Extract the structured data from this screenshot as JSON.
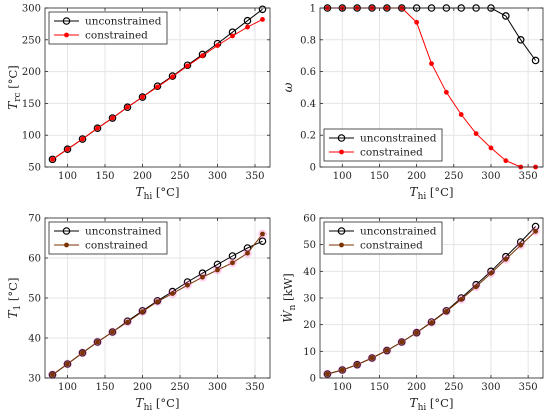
{
  "chart_data": [
    {
      "type": "line",
      "xlabel_main": "T",
      "xlabel_sub": "hi",
      "xlabel_unit": "[°C]",
      "ylabel_main": "T",
      "ylabel_sub": "rc",
      "ylabel_unit": "[°C]",
      "xlim": [
        70,
        370
      ],
      "ylim": [
        50,
        300
      ],
      "xticks": [
        100,
        150,
        200,
        250,
        300,
        350
      ],
      "yticks": [
        50,
        100,
        150,
        200,
        250,
        300
      ],
      "xtick_labels": [
        "100",
        "150",
        "200",
        "250",
        "300",
        "350"
      ],
      "ytick_labels": [
        "50",
        "100",
        "150",
        "200",
        "250",
        "300"
      ],
      "grid": true,
      "legend_position": "top-left",
      "x": [
        80,
        100,
        120,
        140,
        160,
        180,
        200,
        220,
        240,
        260,
        280,
        300,
        320,
        340,
        360
      ],
      "series": [
        {
          "name": "unconstrained",
          "color": "#000000",
          "marker": "open-circle",
          "values": [
            62,
            78,
            94,
            111,
            127,
            144,
            160,
            177,
            193,
            210,
            227,
            244,
            262,
            280,
            298
          ]
        },
        {
          "name": "constrained",
          "color": "#ff0000",
          "marker": "red-dot",
          "values": [
            62,
            78,
            94,
            111,
            127,
            144,
            160,
            176,
            192,
            209,
            225,
            241,
            256,
            270,
            282
          ]
        }
      ]
    },
    {
      "type": "line",
      "xlabel_main": "T",
      "xlabel_sub": "hi",
      "xlabel_unit": "[°C]",
      "ylabel_main": "ω",
      "ylabel_sub": "",
      "ylabel_unit": "",
      "xlim": [
        70,
        370
      ],
      "ylim": [
        0,
        1
      ],
      "xticks": [
        100,
        150,
        200,
        250,
        300,
        350
      ],
      "yticks": [
        0,
        0.2,
        0.4,
        0.6,
        0.8,
        1
      ],
      "xtick_labels": [
        "100",
        "150",
        "200",
        "250",
        "300",
        "350"
      ],
      "ytick_labels": [
        "0",
        "0.2",
        "0.4",
        "0.6",
        "0.8",
        "1"
      ],
      "grid": true,
      "legend_position": "bottom-left",
      "x": [
        80,
        100,
        120,
        140,
        160,
        180,
        200,
        220,
        240,
        260,
        280,
        300,
        320,
        340,
        360
      ],
      "series": [
        {
          "name": "unconstrained",
          "color": "#000000",
          "marker": "open-circle",
          "values": [
            1,
            1,
            1,
            1,
            1,
            1,
            1,
            1,
            1,
            1,
            1,
            1,
            0.95,
            0.8,
            0.67
          ]
        },
        {
          "name": "constrained",
          "color": "#ff0000",
          "marker": "red-dot",
          "values": [
            1,
            1,
            1,
            1,
            1,
            1,
            0.91,
            0.65,
            0.47,
            0.33,
            0.21,
            0.12,
            0.04,
            0.0,
            0.0
          ]
        }
      ]
    },
    {
      "type": "line",
      "xlabel_main": "T",
      "xlabel_sub": "hi",
      "xlabel_unit": "[°C]",
      "ylabel_main": "T",
      "ylabel_sub": "1",
      "ylabel_unit": "[°C]",
      "xlim": [
        70,
        370
      ],
      "ylim": [
        30,
        70
      ],
      "xticks": [
        100,
        150,
        200,
        250,
        300,
        350
      ],
      "yticks": [
        30,
        40,
        50,
        60,
        70
      ],
      "xtick_labels": [
        "100",
        "150",
        "200",
        "250",
        "300",
        "350"
      ],
      "ytick_labels": [
        "30",
        "40",
        "50",
        "60",
        "70"
      ],
      "grid": true,
      "legend_position": "top-left",
      "x": [
        80,
        100,
        120,
        140,
        160,
        180,
        200,
        220,
        240,
        260,
        280,
        300,
        320,
        340,
        360
      ],
      "series": [
        {
          "name": "unconstrained",
          "color": "#000000",
          "marker": "open-circle",
          "values": [
            30.8,
            33.5,
            36.3,
            39.0,
            41.5,
            44.2,
            46.8,
            49.3,
            51.6,
            54.0,
            56.2,
            58.4,
            60.5,
            62.5,
            64.2
          ]
        },
        {
          "name": "constrained",
          "color": "#7a3300",
          "marker": "brown-dot",
          "values": [
            30.8,
            33.5,
            36.3,
            39.0,
            41.5,
            44.0,
            46.6,
            49.1,
            51.1,
            53.2,
            55.2,
            57.0,
            58.8,
            61.2,
            66.0
          ]
        }
      ]
    },
    {
      "type": "line",
      "xlabel_main": "T",
      "xlabel_sub": "hi",
      "xlabel_unit": "[°C]",
      "ylabel_main": "Ẇ",
      "ylabel_sub": "n",
      "ylabel_unit": "[kW]",
      "xlim": [
        70,
        370
      ],
      "ylim": [
        0,
        60
      ],
      "xticks": [
        100,
        150,
        200,
        250,
        300,
        350
      ],
      "yticks": [
        0,
        10,
        20,
        30,
        40,
        50,
        60
      ],
      "xtick_labels": [
        "100",
        "150",
        "200",
        "250",
        "300",
        "350"
      ],
      "ytick_labels": [
        "0",
        "10",
        "20",
        "30",
        "40",
        "50",
        "60"
      ],
      "grid": true,
      "legend_position": "top-left",
      "x": [
        80,
        100,
        120,
        140,
        160,
        180,
        200,
        220,
        240,
        260,
        280,
        300,
        320,
        340,
        360
      ],
      "series": [
        {
          "name": "unconstrained",
          "color": "#000000",
          "marker": "open-circle",
          "values": [
            1.5,
            3.0,
            5.0,
            7.5,
            10.3,
            13.5,
            17.0,
            21.0,
            25.2,
            30.0,
            35.0,
            40.0,
            45.5,
            51.0,
            56.8
          ]
        },
        {
          "name": "constrained",
          "color": "#7a3300",
          "marker": "brown-dot",
          "values": [
            1.5,
            3.0,
            5.0,
            7.5,
            10.3,
            13.5,
            17.0,
            20.8,
            25.0,
            29.5,
            34.2,
            39.3,
            44.5,
            49.8,
            55.0
          ]
        }
      ]
    }
  ]
}
